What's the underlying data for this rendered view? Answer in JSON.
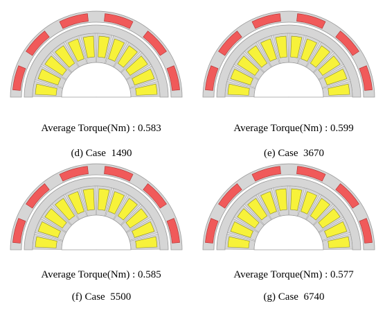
{
  "colors": {
    "housing": "#d6d6d6",
    "outline": "#9a9a9a",
    "magnet": "#f05a5a",
    "coil": "#f7f23a",
    "coil_stroke": "#8a8a20",
    "magnet_stroke": "#b03030"
  },
  "panels": [
    {
      "torque_label": "Average Torque(Nm)",
      "torque_value": "0.583",
      "case_tag": "(d)",
      "case_word": "Case",
      "case_number": "1490"
    },
    {
      "torque_label": "Average Torque(Nm)",
      "torque_value": "0.599",
      "case_tag": "(e)",
      "case_word": "Case",
      "case_number": "3670"
    },
    {
      "torque_label": "Average Torque(Nm)",
      "torque_value": "0.585",
      "case_tag": "(f)",
      "case_word": "Case",
      "case_number": "5500"
    },
    {
      "torque_label": "Average Torque(Nm)",
      "torque_value": "0.577",
      "case_tag": "(g)",
      "case_word": "Case",
      "case_number": "6740"
    }
  ]
}
